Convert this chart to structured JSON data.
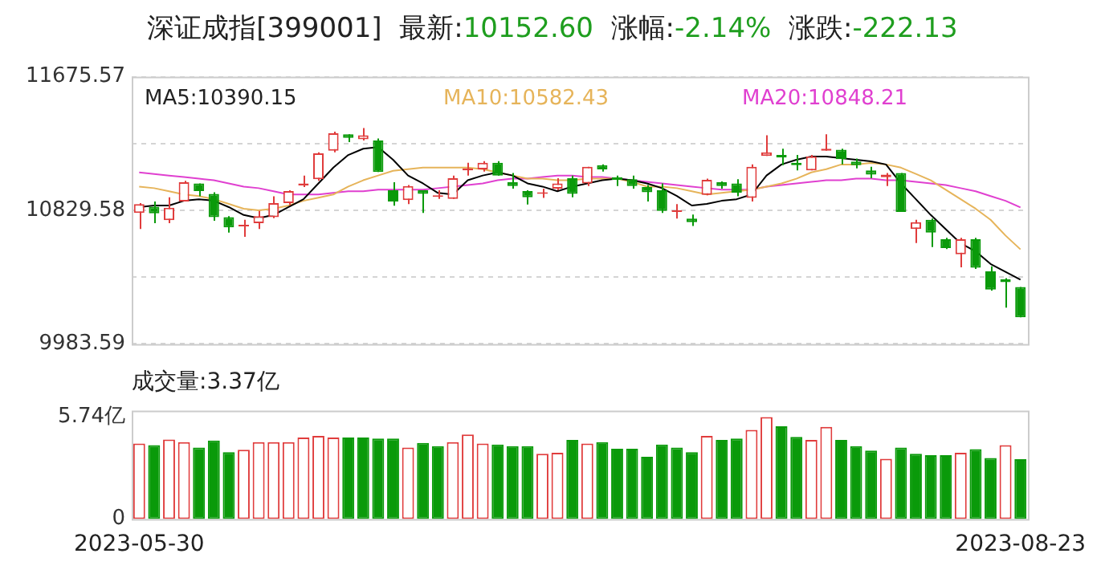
{
  "chart_data": [
    {
      "type": "candlestick",
      "title": "深证成指[399001]  最新:10152.60  涨幅:-2.14%  涨跌:-222.13",
      "categories": [
        "2023-05-30",
        null,
        null,
        null,
        null,
        null,
        null,
        null,
        null,
        null,
        null,
        null,
        null,
        null,
        null,
        null,
        null,
        null,
        null,
        null,
        null,
        null,
        null,
        null,
        null,
        null,
        null,
        null,
        null,
        null,
        null,
        null,
        null,
        null,
        null,
        null,
        null,
        null,
        null,
        null,
        null,
        null,
        null,
        null,
        null,
        null,
        null,
        null,
        null,
        null,
        null,
        null,
        null,
        null,
        null,
        null,
        null,
        null,
        null,
        "2023-08-23"
      ],
      "ohlc": [
        [
          10813,
          10875,
          10711,
          10869
        ],
        [
          10852,
          10885,
          10748,
          10810
        ],
        [
          10767,
          10912,
          10748,
          10846
        ],
        [
          10885,
          11016,
          10885,
          11007
        ],
        [
          11000,
          11000,
          10918,
          10951
        ],
        [
          10934,
          10944,
          10764,
          10787
        ],
        [
          10787,
          10793,
          10688,
          10721
        ],
        [
          10728,
          10770,
          10662,
          10738
        ],
        [
          10748,
          10826,
          10711,
          10793
        ],
        [
          10787,
          10918,
          10780,
          10875
        ],
        [
          10875,
          10957,
          10862,
          10951
        ],
        [
          10987,
          11049,
          10977,
          11000
        ],
        [
          11026,
          11197,
          11016,
          11190
        ],
        [
          11207,
          11328,
          11197,
          11318
        ],
        [
          11311,
          11311,
          11262,
          11289
        ],
        [
          11279,
          11351,
          11272,
          11305
        ],
        [
          11272,
          11285,
          11072,
          11072
        ],
        [
          10957,
          11007,
          10859,
          10885
        ],
        [
          10895,
          10990,
          10869,
          10984
        ],
        [
          10957,
          10957,
          10813,
          10934
        ],
        [
          10915,
          10957,
          10902,
          10925
        ],
        [
          10902,
          11049,
          10902,
          11033
        ],
        [
          11082,
          11131,
          11049,
          11095
        ],
        [
          11089,
          11141,
          11075,
          11131
        ],
        [
          11131,
          11141,
          11049,
          11049
        ],
        [
          11007,
          11066,
          10967,
          10984
        ],
        [
          10951,
          10957,
          10866,
          10912
        ],
        [
          10934,
          10967,
          10908,
          10944
        ],
        [
          10967,
          11033,
          10957,
          11000
        ],
        [
          11033,
          11049,
          10912,
          10934
        ],
        [
          11000,
          11105,
          10984,
          11105
        ],
        [
          11115,
          11121,
          11075,
          11089
        ],
        [
          11039,
          11049,
          10984,
          11023
        ],
        [
          11026,
          11049,
          10967,
          10984
        ],
        [
          10977,
          10990,
          10885,
          10944
        ],
        [
          10957,
          11000,
          10813,
          10826
        ],
        [
          10820,
          10869,
          10777,
          10826
        ],
        [
          10777,
          10803,
          10731,
          10754
        ],
        [
          10928,
          11030,
          10925,
          11023
        ],
        [
          11007,
          11013,
          10967,
          10984
        ],
        [
          11000,
          11026,
          10918,
          10941
        ],
        [
          10908,
          11121,
          10885,
          11105
        ],
        [
          11174,
          11305,
          11174,
          11197
        ],
        [
          11180,
          11220,
          11115,
          11164
        ],
        [
          11131,
          11180,
          11082,
          11115
        ],
        [
          11082,
          11180,
          11082,
          11171
        ],
        [
          11207,
          11311,
          11207,
          11220
        ],
        [
          11213,
          11220,
          11121,
          11154
        ],
        [
          11138,
          11157,
          11095,
          11115
        ],
        [
          11082,
          11105,
          11033,
          11056
        ],
        [
          11039,
          11066,
          10984,
          11056
        ],
        [
          11066,
          11066,
          10820,
          10820
        ],
        [
          10711,
          10770,
          10623,
          10754
        ],
        [
          10770,
          10777,
          10597,
          10688
        ],
        [
          10646,
          10656,
          10584,
          10590
        ],
        [
          10551,
          10656,
          10469,
          10646
        ],
        [
          10646,
          10656,
          10459,
          10466
        ],
        [
          10443,
          10475,
          10321,
          10328
        ],
        [
          10393,
          10400,
          10213,
          10375
        ],
        [
          10344,
          10344,
          10152.6,
          10152.6
        ]
      ],
      "colors": [
        "#e03c3c",
        "#0a9a0a",
        "#e03c3c",
        "#e03c3c",
        "#0a9a0a",
        "#0a9a0a",
        "#0a9a0a",
        "#e03c3c",
        "#e03c3c",
        "#e03c3c",
        "#e03c3c",
        "#e03c3c",
        "#e03c3c",
        "#e03c3c",
        "#0a9a0a",
        "#e03c3c",
        "#0a9a0a",
        "#0a9a0a",
        "#e03c3c",
        "#0a9a0a",
        "#e03c3c",
        "#e03c3c",
        "#e03c3c",
        "#e03c3c",
        "#0a9a0a",
        "#0a9a0a",
        "#0a9a0a",
        "#e03c3c",
        "#e03c3c",
        "#0a9a0a",
        "#e03c3c",
        "#0a9a0a",
        "#0a9a0a",
        "#0a9a0a",
        "#0a9a0a",
        "#0a9a0a",
        "#e03c3c",
        "#0a9a0a",
        "#e03c3c",
        "#0a9a0a",
        "#0a9a0a",
        "#e03c3c",
        "#e03c3c",
        "#0a9a0a",
        "#0a9a0a",
        "#e03c3c",
        "#e03c3c",
        "#0a9a0a",
        "#0a9a0a",
        "#0a9a0a",
        "#e03c3c",
        "#0a9a0a",
        "#e03c3c",
        "#0a9a0a",
        "#0a9a0a",
        "#e03c3c",
        "#0a9a0a",
        "#0a9a0a",
        "#0a9a0a",
        "#0a9a0a"
      ],
      "series": [
        {
          "name": "MA5:10390.15",
          "type": "line",
          "color": "#000000",
          "values": [
            10850,
            10860,
            10860,
            10890,
            10900,
            10890,
            10850,
            10800,
            10780,
            10800,
            10850,
            10900,
            11000,
            11100,
            11180,
            11220,
            11230,
            11150,
            11050,
            11000,
            10940,
            10930,
            11020,
            11050,
            11070,
            11050,
            11000,
            10980,
            10950,
            10980,
            11000,
            11020,
            11030,
            11020,
            11000,
            10970,
            10920,
            10860,
            10870,
            10890,
            10900,
            10930,
            11050,
            11120,
            11150,
            11170,
            11170,
            11160,
            11150,
            11140,
            11120,
            11000,
            10900,
            10800,
            10710,
            10620,
            10570,
            10490,
            10440,
            10390.15
          ]
        },
        {
          "name": "MA10:10582.43",
          "type": "line",
          "color": "#e6b45a",
          "values": [
            10980,
            10970,
            10950,
            10930,
            10920,
            10900,
            10870,
            10840,
            10830,
            10840,
            10860,
            10890,
            10910,
            10930,
            10980,
            11020,
            11050,
            11080,
            11090,
            11100,
            11100,
            11100,
            11100,
            11090,
            11070,
            11050,
            11030,
            11030,
            11020,
            11020,
            11030,
            11030,
            11030,
            11010,
            10980,
            10980,
            10970,
            10950,
            10930,
            10940,
            10950,
            10960,
            10980,
            11000,
            11030,
            11070,
            11090,
            11120,
            11120,
            11130,
            11120,
            11100,
            11060,
            11020,
            10960,
            10900,
            10840,
            10770,
            10670,
            10582.43
          ]
        },
        {
          "name": "MA20:10848.21",
          "type": "line",
          "color": "#e040d0",
          "values": [
            11070,
            11060,
            11050,
            11040,
            11030,
            11020,
            11000,
            10980,
            10970,
            10950,
            10930,
            10930,
            10930,
            10940,
            10950,
            10950,
            10960,
            10960,
            10960,
            10960,
            10970,
            10980,
            10990,
            11000,
            11020,
            11030,
            11030,
            11040,
            11050,
            11050,
            11040,
            11040,
            11030,
            11020,
            11010,
            11000,
            10990,
            10980,
            10970,
            10960,
            10960,
            10960,
            10980,
            10990,
            11000,
            11010,
            11020,
            11020,
            11030,
            11030,
            11020,
            11020,
            11010,
            11000,
            10990,
            10970,
            10950,
            10920,
            10890,
            10848.21
          ]
        }
      ],
      "ylim": [
        9983.59,
        11675.57
      ],
      "yticks": [
        11675.57,
        {
          "value": 11252.58,
          "label": null
        },
        10829.58,
        {
          "value": 10406.59,
          "label": null
        },
        9983.59
      ],
      "grid": "y",
      "legend": "top",
      "tick_labels": "y",
      "marker": "none"
    },
    {
      "type": "bar",
      "title": "成交量:3.37亿",
      "categories": [
        "2023-05-30",
        null,
        null,
        null,
        null,
        null,
        null,
        null,
        null,
        null,
        null,
        null,
        null,
        null,
        null,
        null,
        null,
        null,
        null,
        null,
        null,
        null,
        null,
        null,
        null,
        null,
        null,
        null,
        null,
        null,
        null,
        null,
        null,
        null,
        null,
        null,
        null,
        null,
        null,
        null,
        null,
        null,
        null,
        null,
        null,
        null,
        null,
        null,
        null,
        null,
        null,
        null,
        null,
        null,
        null,
        null,
        null,
        null,
        null,
        "2023-08-23"
      ],
      "values": [
        4.25,
        4.16,
        4.48,
        4.33,
        4.02,
        4.42,
        3.76,
        3.9,
        4.33,
        4.33,
        4.33,
        4.59,
        4.68,
        4.59,
        4.59,
        4.59,
        4.53,
        4.53,
        4.02,
        4.28,
        4.1,
        4.33,
        4.76,
        4.25,
        4.19,
        4.1,
        4.1,
        3.67,
        3.73,
        4.45,
        4.25,
        4.33,
        3.96,
        3.96,
        3.5,
        4.19,
        4.02,
        3.76,
        4.68,
        4.45,
        4.53,
        5.02,
        5.74,
        5.22,
        4.62,
        4.45,
        5.19,
        4.45,
        4.1,
        3.85,
        3.39,
        4.02,
        3.67,
        3.59,
        3.59,
        3.73,
        3.93,
        3.44,
        4.16,
        3.37
      ],
      "colors": [
        "#e03c3c",
        "#0a9a0a",
        "#e03c3c",
        "#e03c3c",
        "#0a9a0a",
        "#0a9a0a",
        "#0a9a0a",
        "#e03c3c",
        "#e03c3c",
        "#e03c3c",
        "#e03c3c",
        "#e03c3c",
        "#e03c3c",
        "#e03c3c",
        "#0a9a0a",
        "#0a9a0a",
        "#0a9a0a",
        "#0a9a0a",
        "#e03c3c",
        "#0a9a0a",
        "#0a9a0a",
        "#e03c3c",
        "#e03c3c",
        "#e03c3c",
        "#0a9a0a",
        "#0a9a0a",
        "#0a9a0a",
        "#e03c3c",
        "#e03c3c",
        "#0a9a0a",
        "#e03c3c",
        "#0a9a0a",
        "#0a9a0a",
        "#0a9a0a",
        "#0a9a0a",
        "#0a9a0a",
        "#0a9a0a",
        "#0a9a0a",
        "#e03c3c",
        "#0a9a0a",
        "#0a9a0a",
        "#e03c3c",
        "#e03c3c",
        "#0a9a0a",
        "#0a9a0a",
        "#e03c3c",
        "#e03c3c",
        "#0a9a0a",
        "#0a9a0a",
        "#0a9a0a",
        "#e03c3c",
        "#0a9a0a",
        "#0a9a0a",
        "#0a9a0a",
        "#0a9a0a",
        "#e03c3c",
        "#0a9a0a",
        "#0a9a0a",
        "#e03c3c",
        "#0a9a0a"
      ],
      "ylim": [
        0,
        6.1
      ],
      "yticks": [
        {
          "value": 5.74,
          "label": "5.74亿"
        },
        0
      ],
      "grid": false
    }
  ]
}
